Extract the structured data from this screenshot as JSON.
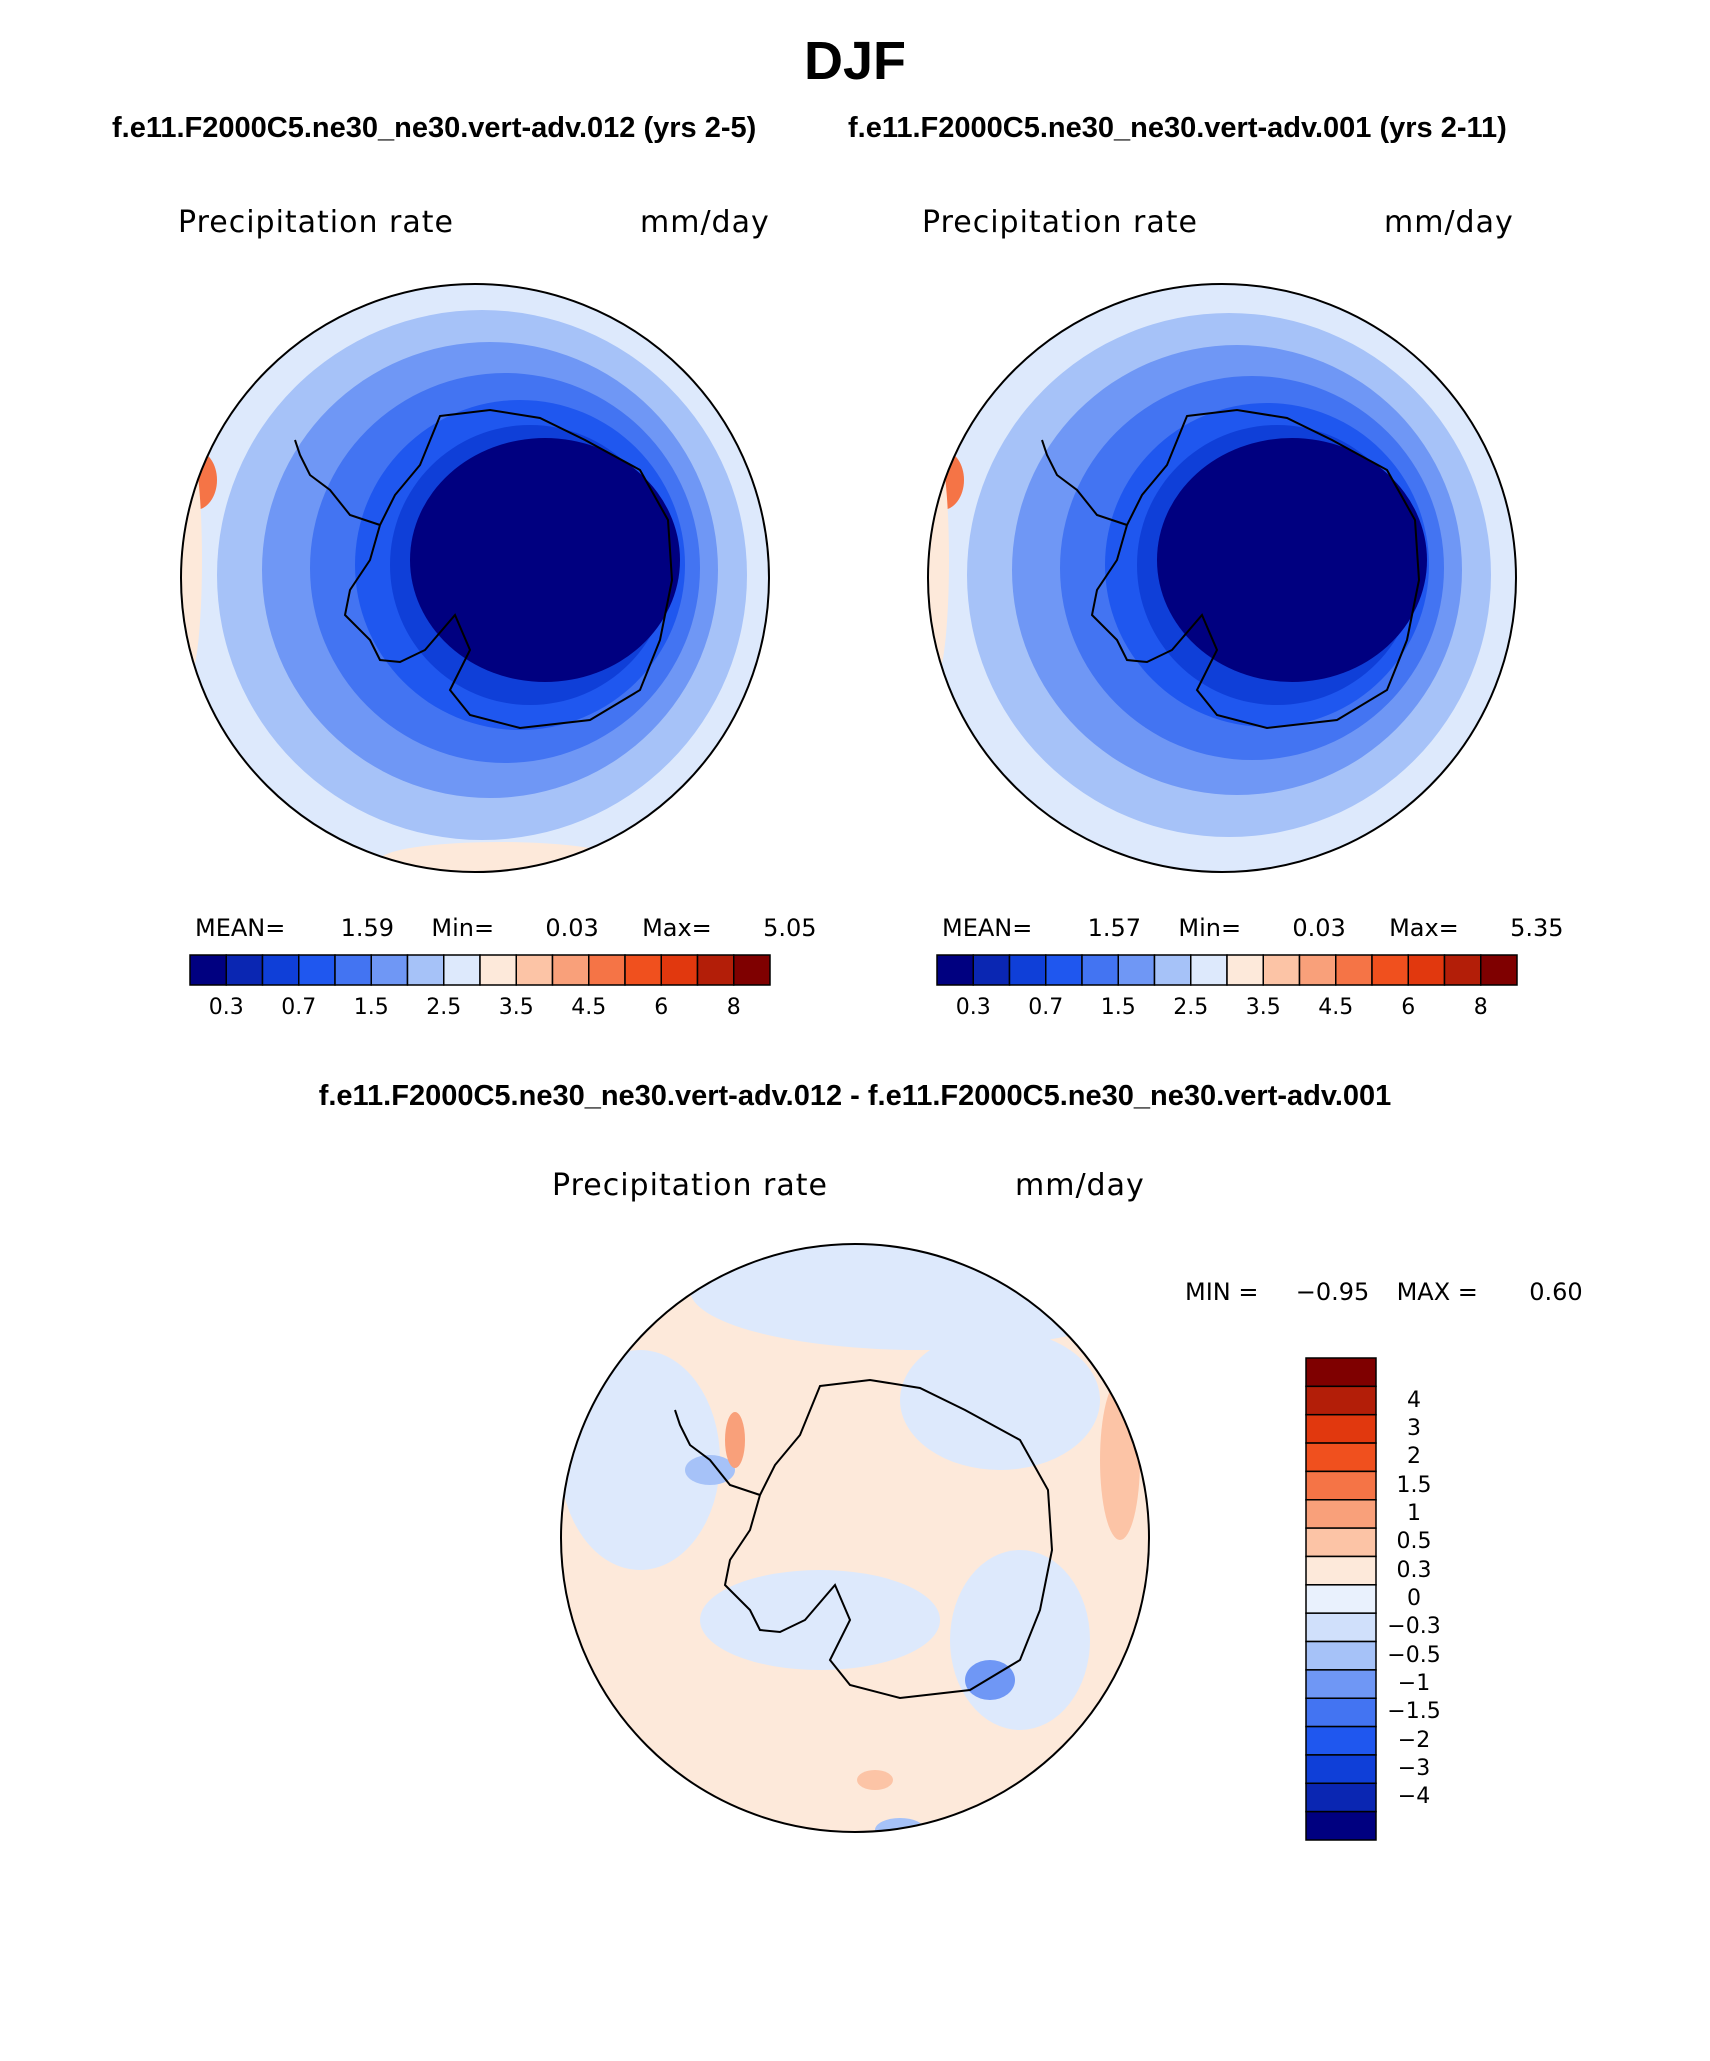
{
  "title": "DJF",
  "case_titles": {
    "left": "f.e11.F2000C5.ne30_ne30.vert-adv.012 (yrs 2-5)",
    "right": "f.e11.F2000C5.ne30_ne30.vert-adv.001 (yrs 2-11)"
  },
  "diff_title": "f.e11.F2000C5.ne30_ne30.vert-adv.012 - f.e11.F2000C5.ne30_ne30.vert-adv.001",
  "panels": [
    {
      "variable": "Precipitation rate",
      "units": "mm/day",
      "stats": {
        "mean_label": "MEAN=",
        "mean": "1.59",
        "min_label": "Min=",
        "min": "0.03",
        "max_label": "Max=",
        "max": "5.05"
      }
    },
    {
      "variable": "Precipitation rate",
      "units": "mm/day",
      "stats": {
        "mean_label": "MEAN=",
        "mean": "1.57",
        "min_label": "Min=",
        "min": "0.03",
        "max_label": "Max=",
        "max": "5.35"
      }
    }
  ],
  "diff_panel": {
    "variable": "Precipitation rate",
    "units": "mm/day",
    "min_label": "MIN =",
    "min": "−0.95",
    "max_label": "MAX =",
    "max": "0.60"
  },
  "colorbar_main": {
    "colors": [
      "#000080",
      "#0a26b2",
      "#0f3fd8",
      "#1f57ef",
      "#4374f2",
      "#6f97f5",
      "#a6c2f8",
      "#dde9fc",
      "#fde9da",
      "#fcc4a6",
      "#f9a07a",
      "#f57446",
      "#f0501e",
      "#e1380e",
      "#b31e08",
      "#7f0000"
    ],
    "tick_labels": [
      "0.3",
      "0.7",
      "1.5",
      "2.5",
      "3.5",
      "4.5",
      "6",
      "8"
    ]
  },
  "colorbar_diff": {
    "colors": [
      "#7f0000",
      "#b31e08",
      "#e1380e",
      "#f0501e",
      "#f57446",
      "#f9a07a",
      "#fcc4a6",
      "#fde9da",
      "#e9f1fd",
      "#d0e0fb",
      "#a6c2f8",
      "#6f97f5",
      "#4374f2",
      "#1f57ef",
      "#0f3fd8",
      "#0a26b2",
      "#000080"
    ],
    "tick_labels": [
      "4",
      "3",
      "2",
      "1.5",
      "1",
      "0.5",
      "0.3",
      "0",
      "−0.3",
      "−0.5",
      "−1",
      "−1.5",
      "−2",
      "−3",
      "−4"
    ]
  }
}
